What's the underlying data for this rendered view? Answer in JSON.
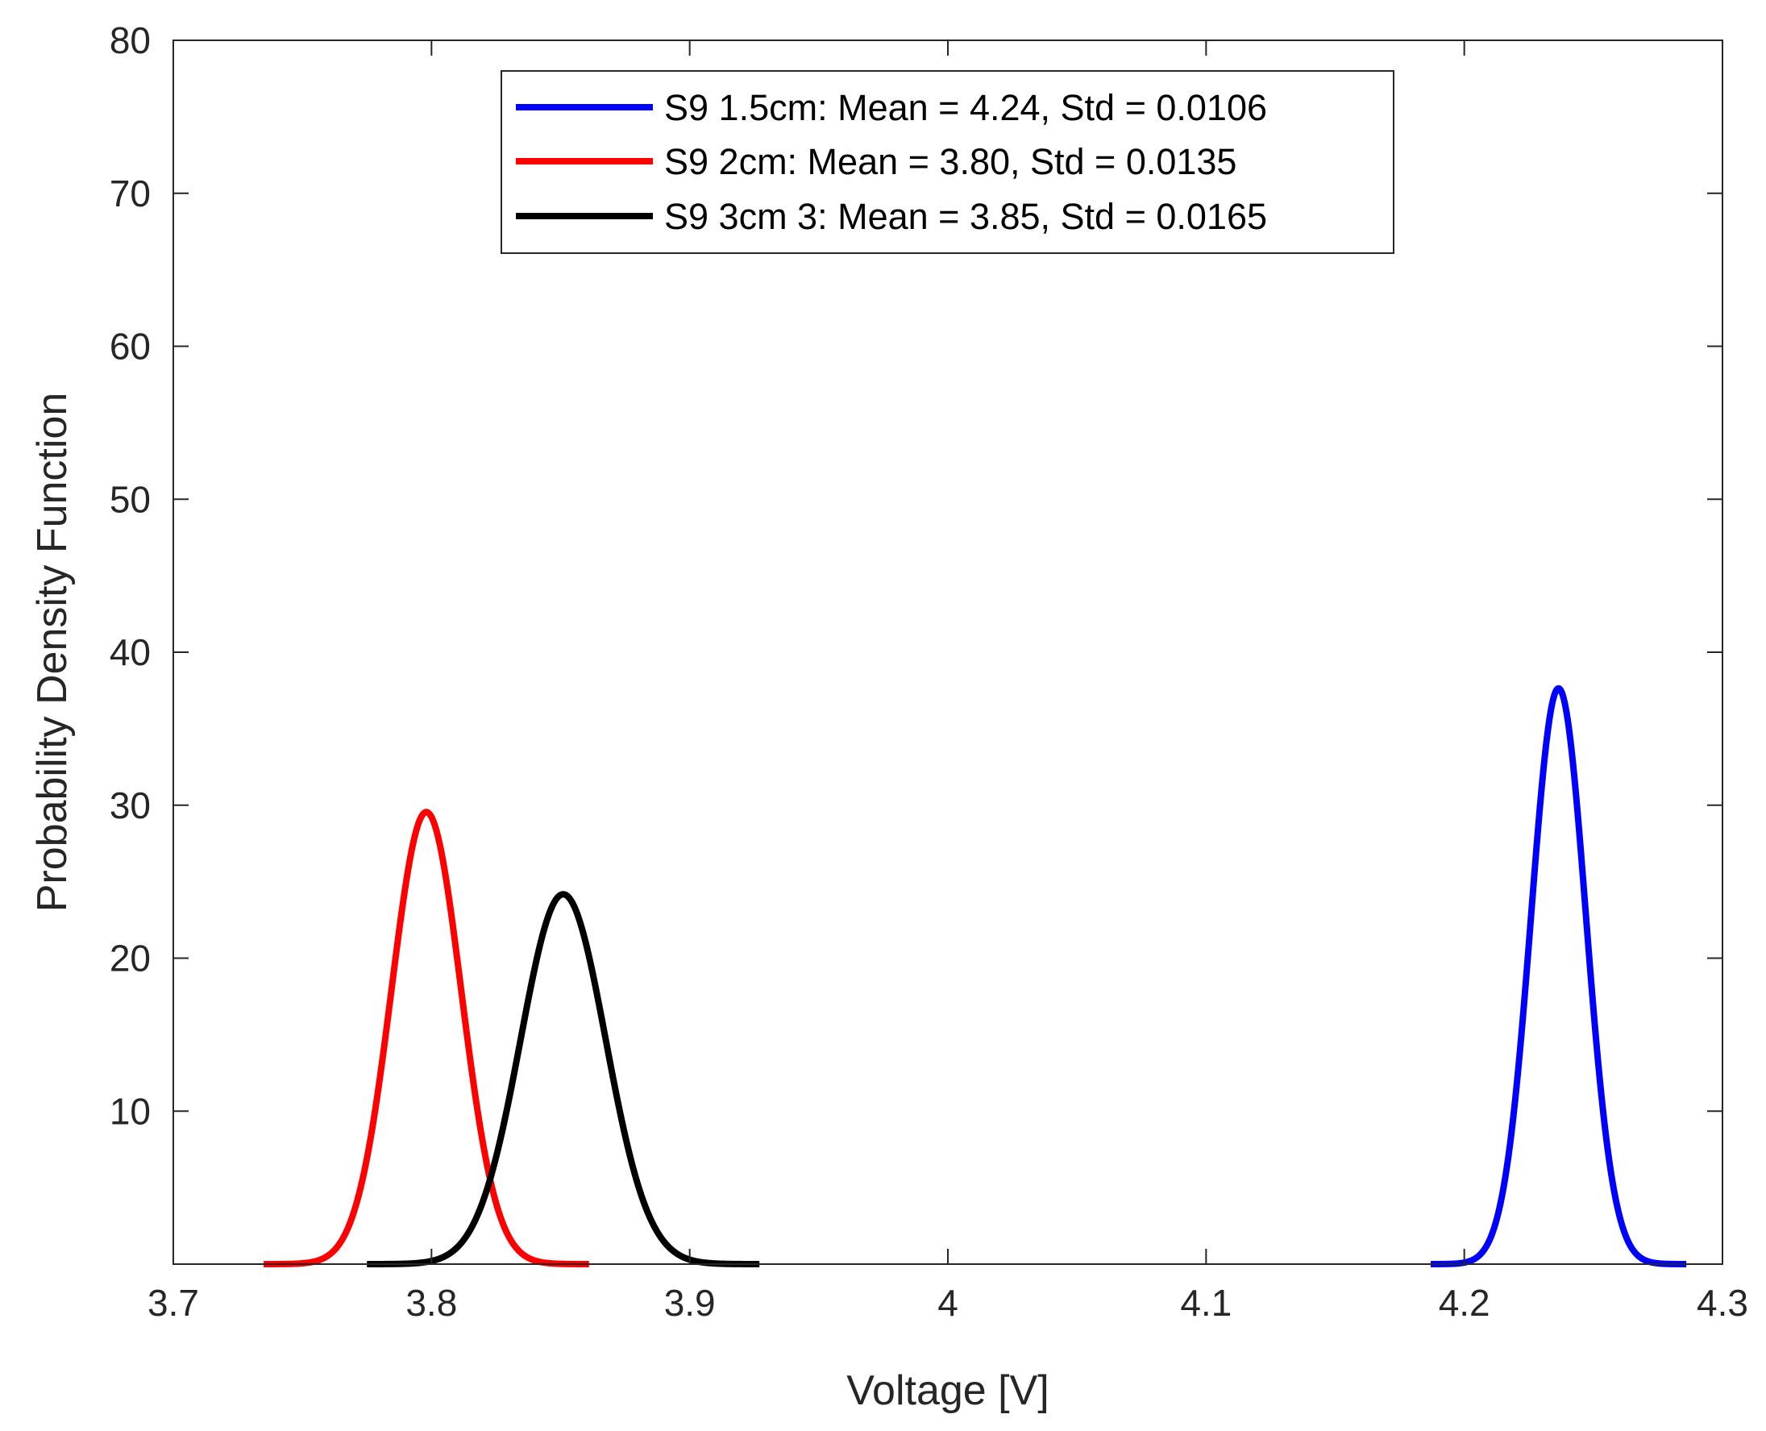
{
  "chart_data": {
    "type": "line",
    "title": "",
    "xlabel": "Voltage [V]",
    "ylabel": "Probability Density Function",
    "xlim": [
      3.7,
      4.3
    ],
    "ylim": [
      0,
      80
    ],
    "grid": false,
    "legend_position": "top-center",
    "x_ticks": [
      3.7,
      3.8,
      3.9,
      4.0,
      4.1,
      4.2,
      4.3
    ],
    "x_tick_labels": [
      "3.7",
      "3.8",
      "3.9",
      "4",
      "4.1",
      "4.2",
      "4.3"
    ],
    "y_ticks": [
      10,
      20,
      30,
      40,
      50,
      60,
      70,
      80
    ],
    "y_tick_labels": [
      "10",
      "20",
      "30",
      "40",
      "50",
      "60",
      "70",
      "80"
    ],
    "series": [
      {
        "name": "S9 1.5cm: Mean = 4.24, Std = 0.0106",
        "color": "#0000ff",
        "distribution": "normal",
        "mean": 4.2365,
        "std": 0.0106,
        "x_range": [
          4.187,
          4.286
        ]
      },
      {
        "name": "S9 2cm: Mean = 3.80, Std = 0.0135",
        "color": "#ff0000",
        "distribution": "normal",
        "mean": 3.798,
        "std": 0.0135,
        "x_range": [
          3.735,
          3.861
        ]
      },
      {
        "name": "S9 3cm 3: Mean = 3.85, Std = 0.0165",
        "color": "#000000",
        "distribution": "normal",
        "mean": 3.851,
        "std": 0.0165,
        "x_range": [
          3.775,
          3.927
        ]
      }
    ]
  }
}
